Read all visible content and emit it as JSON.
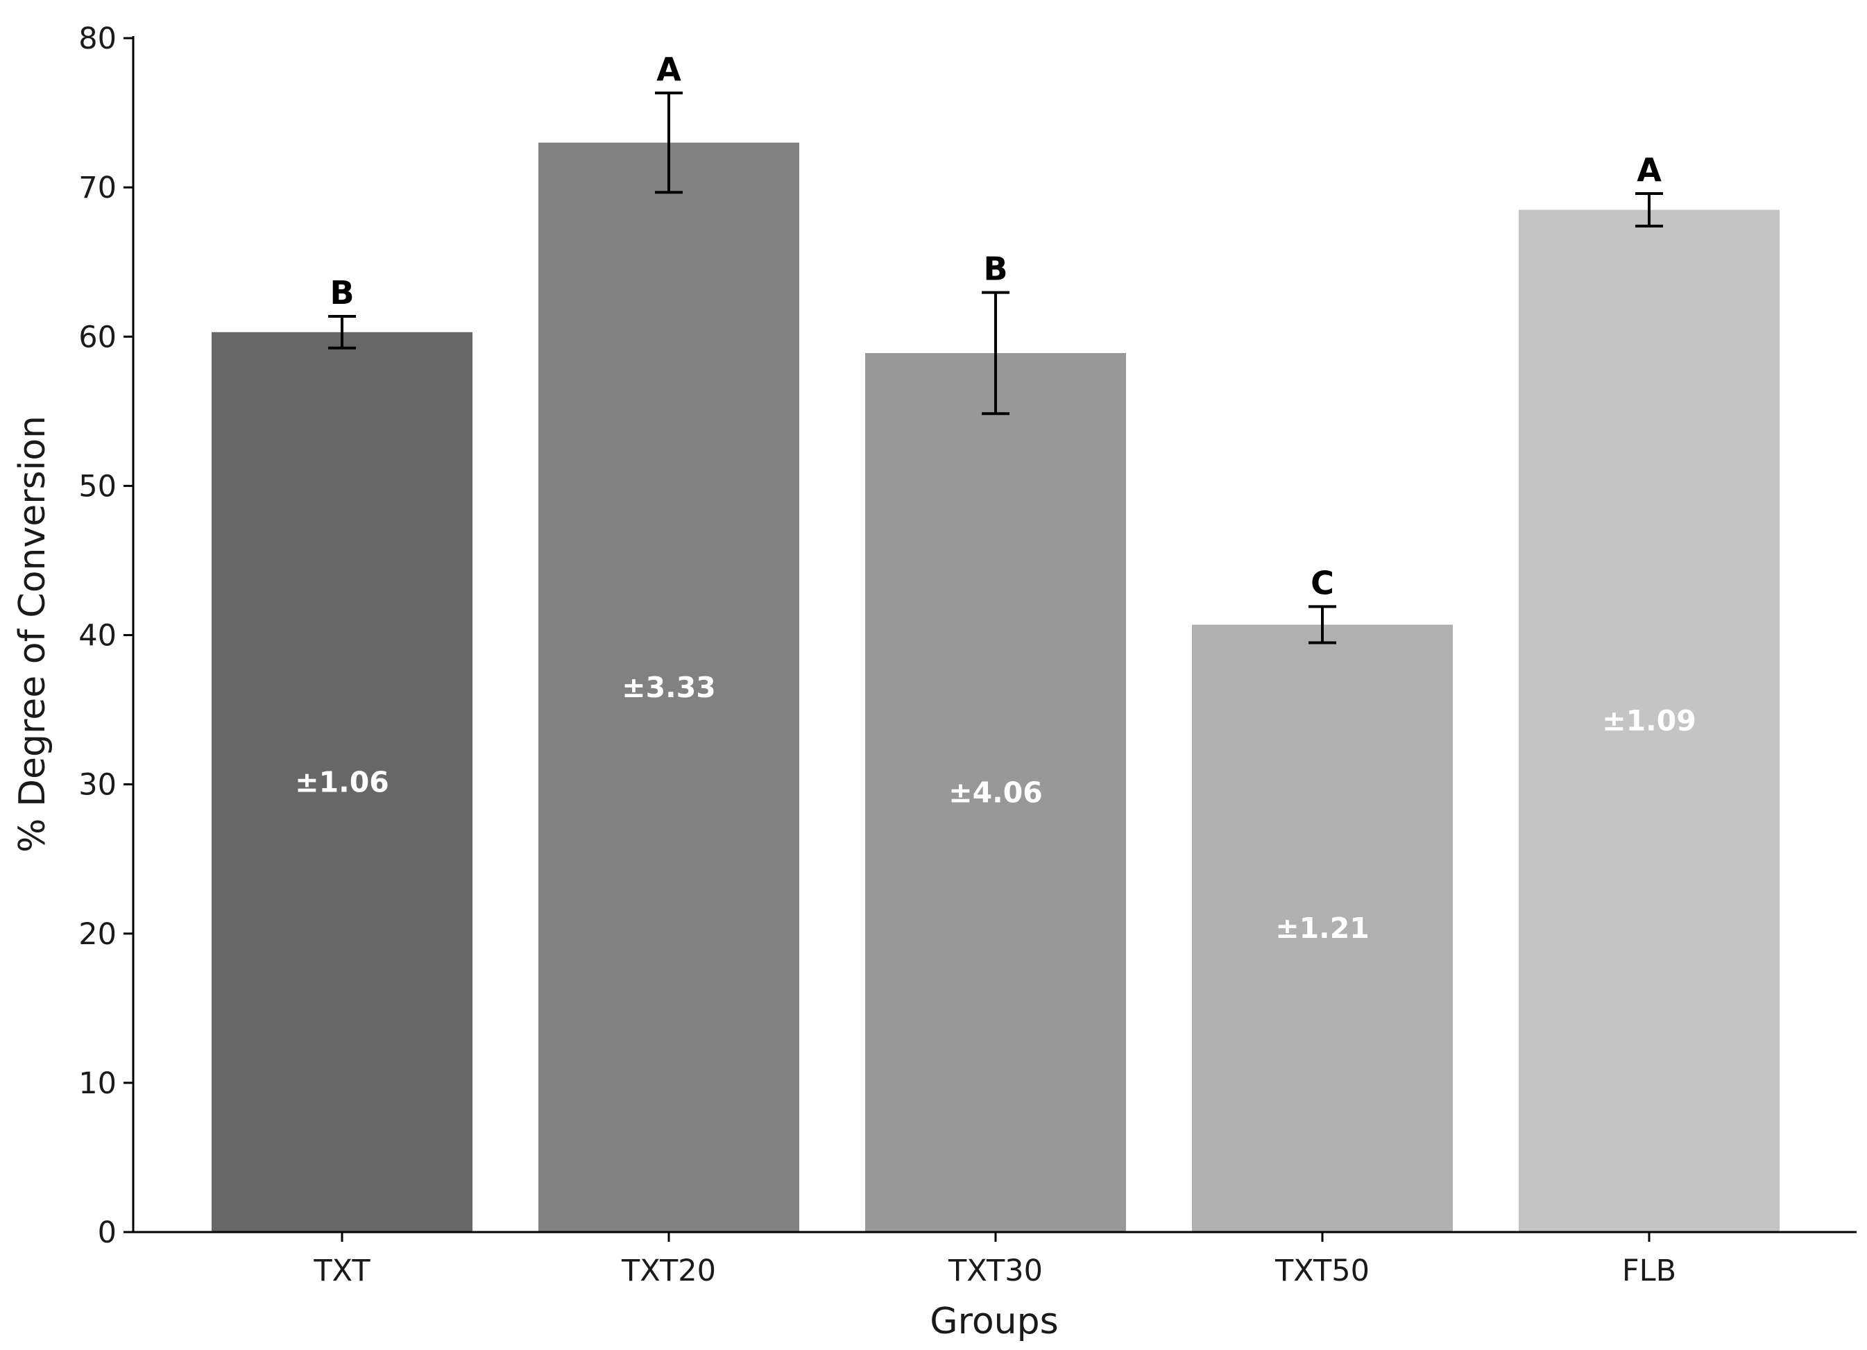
{
  "chart_data": {
    "type": "bar",
    "categories": [
      "TXT",
      "TXT20",
      "TXT30",
      "TXT50",
      "FLB"
    ],
    "values": [
      60.3,
      73.0,
      58.9,
      40.7,
      68.5
    ],
    "errors": [
      1.06,
      3.33,
      4.06,
      1.21,
      1.09
    ],
    "error_labels": [
      "±1.06",
      "±3.33",
      "±4.06",
      "±1.21",
      "±1.09"
    ],
    "significance": [
      "B",
      "A",
      "B",
      "C",
      "A"
    ],
    "colors": [
      "#676767",
      "#818181",
      "#989898",
      "#b0b0b0",
      "#c4c4c4"
    ],
    "xlabel": "Groups",
    "ylabel": "% Degree of Conversion",
    "ylim": [
      0,
      80
    ],
    "yticks": [
      0,
      10,
      20,
      30,
      40,
      50,
      60,
      70,
      80
    ],
    "grid": false
  }
}
